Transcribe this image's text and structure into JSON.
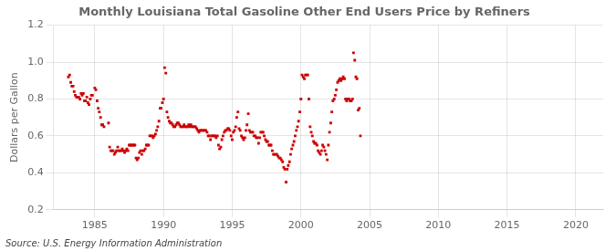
{
  "chart_data": {
    "type": "scatter",
    "title": "Monthly Louisiana Total Gasoline Other End Users Price by Refiners",
    "ylabel": "Dollars per Gallon",
    "annotations": [
      "Source: U.S. Energy Information Administration"
    ],
    "color": "#cc0000",
    "marker": "square",
    "grid": true,
    "xlim": [
      1982,
      2022
    ],
    "ylim": [
      0.2,
      1.2
    ],
    "xticks": [
      1985,
      1990,
      1995,
      2000,
      2005,
      2010,
      2015,
      2020
    ],
    "yticks": [
      0.2,
      0.4,
      0.6,
      0.8,
      {
        "value": 1.0,
        "label": "1.0"
      },
      1.2
    ],
    "x": [
      1983.08,
      1983.17,
      1983.25,
      1983.33,
      1983.42,
      1983.5,
      1983.58,
      1983.67,
      1983.75,
      1983.83,
      1983.92,
      1984.0,
      1984.08,
      1984.17,
      1984.25,
      1984.33,
      1984.42,
      1984.5,
      1984.58,
      1984.67,
      1984.75,
      1984.83,
      1985.0,
      1985.08,
      1985.17,
      1985.25,
      1985.33,
      1985.42,
      1985.5,
      1985.58,
      1985.67,
      1986.0,
      1986.08,
      1986.17,
      1986.25,
      1986.33,
      1986.42,
      1986.5,
      1986.58,
      1986.67,
      1986.75,
      1986.83,
      1986.92,
      1987.0,
      1987.08,
      1987.17,
      1987.25,
      1987.33,
      1987.42,
      1987.5,
      1987.58,
      1987.67,
      1987.75,
      1987.83,
      1987.92,
      1988.0,
      1988.08,
      1988.17,
      1988.25,
      1988.33,
      1988.42,
      1988.5,
      1988.58,
      1988.67,
      1988.75,
      1988.83,
      1988.92,
      1989.0,
      1989.08,
      1989.17,
      1989.25,
      1989.33,
      1989.42,
      1989.5,
      1989.58,
      1989.67,
      1989.75,
      1989.83,
      1989.92,
      1990.0,
      1990.08,
      1990.17,
      1990.25,
      1990.33,
      1990.42,
      1990.5,
      1990.58,
      1990.67,
      1990.75,
      1990.83,
      1990.92,
      1991.0,
      1991.08,
      1991.17,
      1991.25,
      1991.33,
      1991.42,
      1991.5,
      1991.58,
      1991.67,
      1991.75,
      1991.83,
      1991.92,
      1992.0,
      1992.08,
      1992.17,
      1992.25,
      1992.33,
      1992.42,
      1992.5,
      1992.58,
      1992.67,
      1992.75,
      1992.83,
      1992.92,
      1993.0,
      1993.08,
      1993.17,
      1993.25,
      1993.33,
      1993.42,
      1993.5,
      1993.58,
      1993.67,
      1993.75,
      1993.83,
      1993.92,
      1994.0,
      1994.08,
      1994.17,
      1994.25,
      1994.33,
      1994.42,
      1994.5,
      1994.58,
      1994.67,
      1994.75,
      1994.83,
      1994.92,
      1995.0,
      1995.08,
      1995.17,
      1995.25,
      1995.33,
      1995.42,
      1995.5,
      1995.58,
      1995.67,
      1995.75,
      1995.83,
      1995.92,
      1996.0,
      1996.08,
      1996.17,
      1996.25,
      1996.33,
      1996.42,
      1996.5,
      1996.58,
      1996.67,
      1996.75,
      1996.83,
      1996.92,
      1997.0,
      1997.08,
      1997.17,
      1997.25,
      1997.33,
      1997.42,
      1997.5,
      1997.58,
      1997.67,
      1997.75,
      1997.83,
      1997.92,
      1998.0,
      1998.08,
      1998.17,
      1998.25,
      1998.33,
      1998.42,
      1998.5,
      1998.58,
      1998.67,
      1998.75,
      1998.83,
      1998.92,
      1999.0,
      1999.08,
      1999.17,
      1999.25,
      1999.33,
      1999.42,
      1999.5,
      1999.58,
      1999.67,
      1999.75,
      1999.83,
      1999.92,
      2000.0,
      2000.08,
      2000.17,
      2000.25,
      2000.33,
      2000.42,
      2000.5,
      2000.58,
      2000.67,
      2000.75,
      2000.83,
      2000.92,
      2001.0,
      2001.08,
      2001.17,
      2001.25,
      2001.33,
      2001.42,
      2001.5,
      2001.58,
      2001.67,
      2001.75,
      2001.83,
      2001.92,
      2002.0,
      2002.08,
      2002.17,
      2002.25,
      2002.33,
      2002.42,
      2002.5,
      2002.58,
      2002.67,
      2002.75,
      2002.83,
      2002.92,
      2003.0,
      2003.08,
      2003.17,
      2003.25,
      2003.33,
      2003.42,
      2003.5,
      2003.58,
      2003.67,
      2003.75,
      2003.83,
      2003.92,
      2004.0,
      2004.08,
      2004.17,
      2004.25,
      2004.33
    ],
    "values": [
      0.92,
      0.93,
      0.89,
      0.87,
      0.87,
      0.84,
      0.82,
      0.81,
      0.81,
      0.81,
      0.8,
      0.83,
      0.82,
      0.83,
      0.79,
      0.79,
      0.81,
      0.78,
      0.77,
      0.8,
      0.82,
      0.82,
      0.86,
      0.85,
      0.79,
      0.75,
      0.73,
      0.7,
      0.66,
      0.66,
      0.65,
      0.67,
      0.54,
      0.52,
      0.52,
      0.52,
      0.5,
      0.51,
      0.52,
      0.54,
      0.52,
      0.52,
      0.52,
      0.53,
      0.52,
      0.51,
      0.52,
      0.53,
      0.52,
      0.55,
      0.55,
      0.55,
      0.55,
      0.55,
      0.55,
      0.48,
      0.47,
      0.48,
      0.51,
      0.52,
      0.5,
      0.52,
      0.52,
      0.53,
      0.55,
      0.55,
      0.55,
      0.6,
      0.6,
      0.6,
      0.59,
      0.6,
      0.61,
      0.63,
      0.65,
      0.68,
      0.75,
      0.75,
      0.78,
      0.8,
      0.97,
      0.94,
      0.73,
      0.7,
      0.68,
      0.67,
      0.67,
      0.66,
      0.65,
      0.65,
      0.66,
      0.67,
      0.67,
      0.66,
      0.65,
      0.65,
      0.65,
      0.66,
      0.65,
      0.65,
      0.65,
      0.66,
      0.65,
      0.66,
      0.65,
      0.65,
      0.65,
      0.65,
      0.64,
      0.63,
      0.62,
      0.63,
      0.63,
      0.63,
      0.63,
      0.63,
      0.63,
      0.62,
      0.6,
      0.6,
      0.58,
      0.6,
      0.6,
      0.6,
      0.6,
      0.59,
      0.6,
      0.55,
      0.53,
      0.54,
      0.58,
      0.6,
      0.62,
      0.63,
      0.63,
      0.64,
      0.64,
      0.63,
      0.6,
      0.58,
      0.62,
      0.63,
      0.65,
      0.7,
      0.73,
      0.64,
      0.63,
      0.6,
      0.59,
      0.58,
      0.59,
      0.63,
      0.66,
      0.72,
      0.63,
      0.62,
      0.62,
      0.62,
      0.6,
      0.6,
      0.59,
      0.59,
      0.56,
      0.59,
      0.62,
      0.62,
      0.62,
      0.6,
      0.58,
      0.57,
      0.57,
      0.55,
      0.55,
      0.55,
      0.52,
      0.5,
      0.5,
      0.5,
      0.5,
      0.49,
      0.48,
      0.48,
      0.47,
      0.46,
      0.43,
      0.42,
      0.35,
      0.42,
      0.44,
      0.46,
      0.5,
      0.53,
      0.55,
      0.57,
      0.6,
      0.63,
      0.65,
      0.68,
      0.73,
      0.8,
      0.93,
      0.92,
      0.91,
      0.93,
      0.93,
      0.93,
      0.8,
      0.65,
      0.62,
      0.6,
      0.57,
      0.56,
      0.56,
      0.55,
      0.52,
      0.51,
      0.5,
      0.52,
      0.55,
      0.54,
      0.52,
      0.5,
      0.47,
      0.55,
      0.62,
      0.67,
      0.73,
      0.79,
      0.8,
      0.82,
      0.85,
      0.89,
      0.9,
      0.91,
      0.9,
      0.91,
      0.92,
      0.91,
      0.8,
      0.79,
      0.8,
      0.8,
      0.79,
      0.79,
      0.8,
      1.05,
      1.01,
      0.92,
      0.91,
      0.74,
      0.75,
      0.6
    ]
  }
}
